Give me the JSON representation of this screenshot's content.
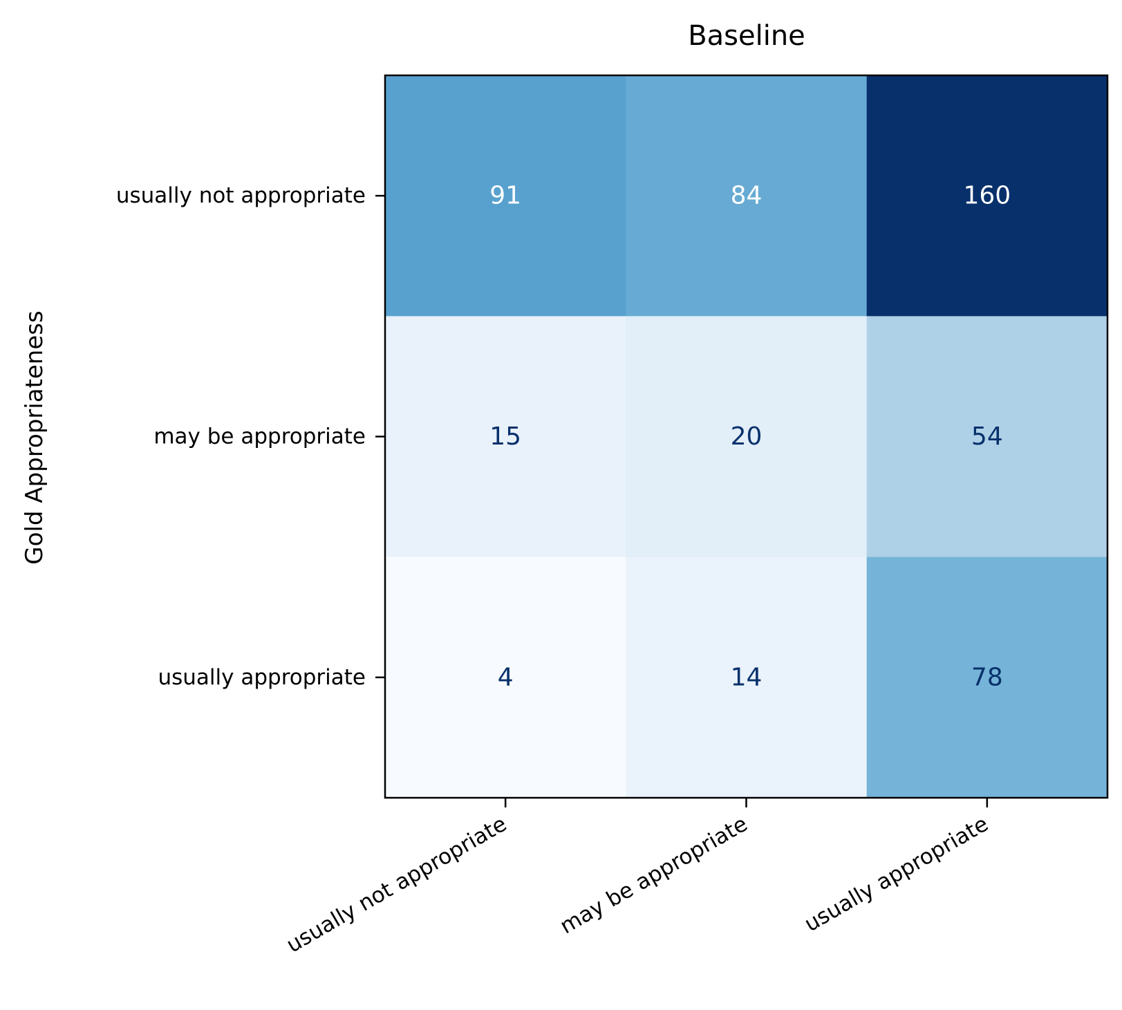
{
  "chart_data": {
    "type": "heatmap",
    "title": "Baseline",
    "ylabel": "Gold Appropriateness",
    "xlabel": "",
    "row_labels": [
      "usually not appropriate",
      "may be appropriate",
      "usually appropriate"
    ],
    "col_labels": [
      "usually not appropriate",
      "may be appropriate",
      "usually appropriate"
    ],
    "values": [
      [
        91,
        84,
        160
      ],
      [
        15,
        20,
        54
      ],
      [
        4,
        14,
        78
      ]
    ],
    "colormap": "Blues",
    "value_range": [
      4,
      160
    ],
    "text_colors": {
      "light": "#ffffff",
      "dark": "#08306b"
    },
    "grid": false,
    "colorbar": false
  }
}
